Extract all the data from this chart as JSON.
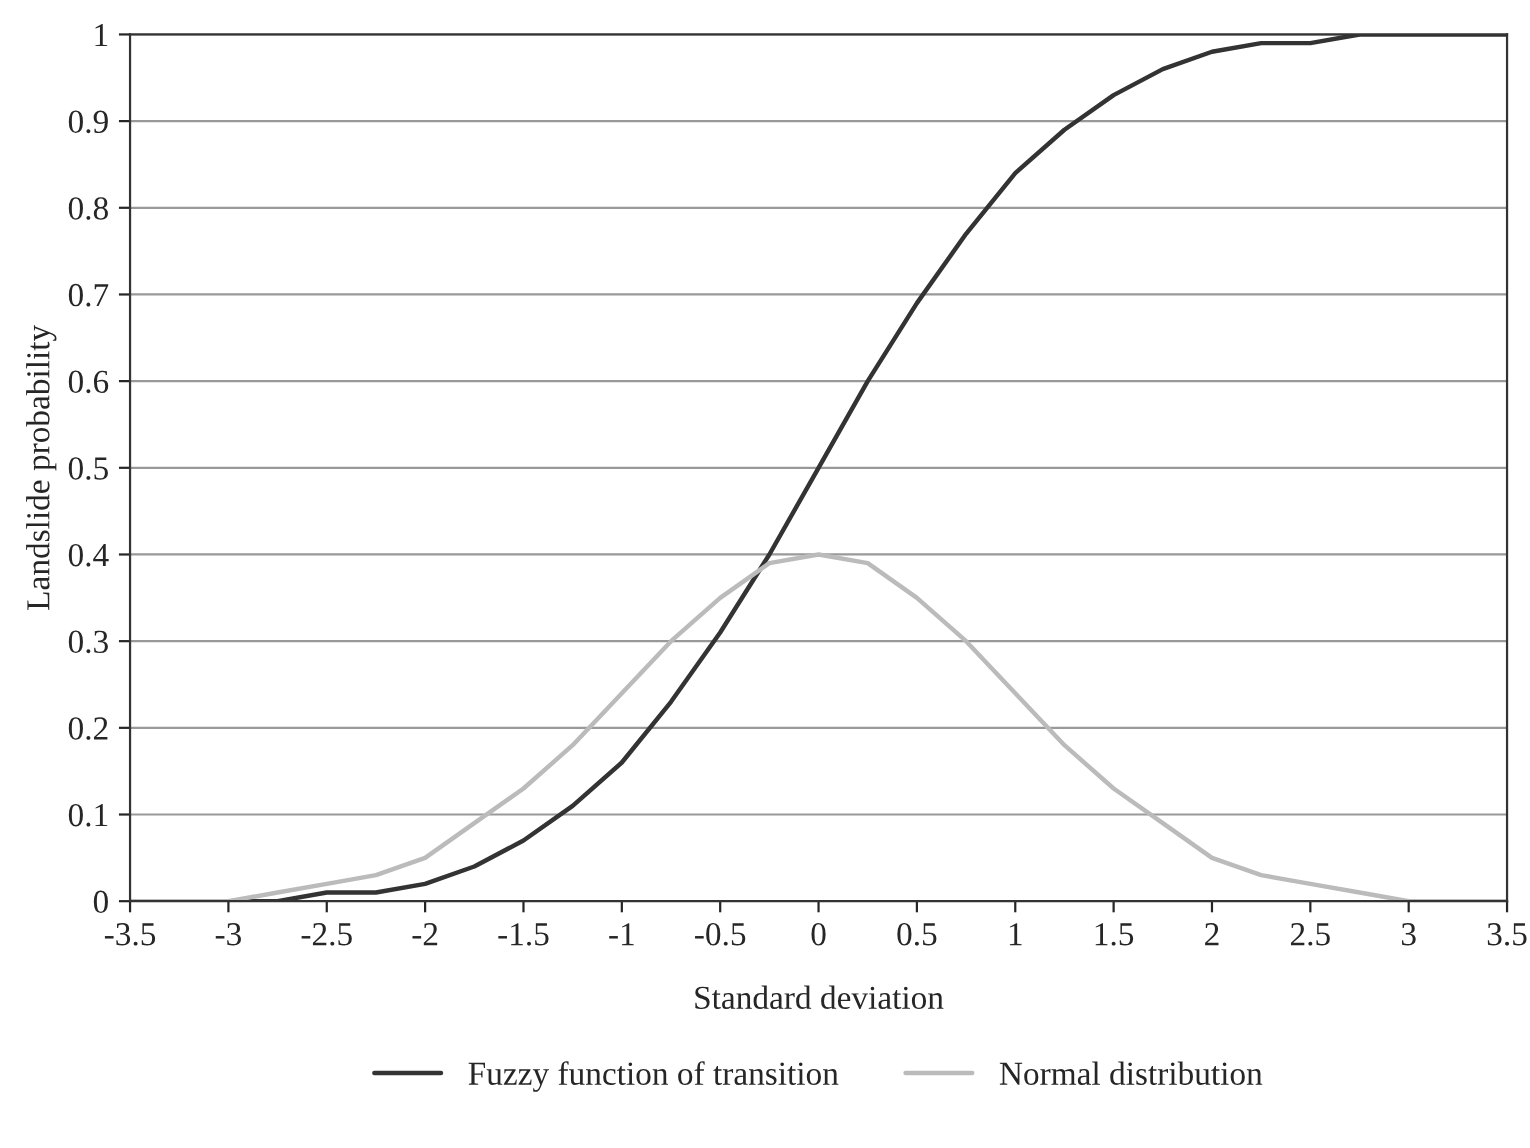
{
  "chart_data": {
    "type": "line",
    "xlabel": "Standard deviation",
    "ylabel": "Landslide probability",
    "x": [
      -3.5,
      -3.25,
      -3,
      -2.75,
      -2.5,
      -2.25,
      -2,
      -1.75,
      -1.5,
      -1.25,
      -1,
      -0.75,
      -0.5,
      -0.25,
      0,
      0.25,
      0.5,
      0.75,
      1,
      1.25,
      1.5,
      1.75,
      2,
      2.25,
      2.5,
      2.75,
      3,
      3.25,
      3.5
    ],
    "series": [
      {
        "name": "Fuzzy function of transition",
        "color": "#333333",
        "values": [
          0,
          0,
          0,
          0,
          0.01,
          0.01,
          0.02,
          0.04,
          0.07,
          0.11,
          0.16,
          0.23,
          0.31,
          0.4,
          0.5,
          0.6,
          0.69,
          0.77,
          0.84,
          0.89,
          0.93,
          0.96,
          0.98,
          0.99,
          0.99,
          1,
          1,
          1,
          1
        ]
      },
      {
        "name": "Normal distribution",
        "color": "#bbbbbb",
        "values": [
          0,
          0,
          0,
          0.01,
          0.02,
          0.03,
          0.05,
          0.09,
          0.13,
          0.18,
          0.24,
          0.3,
          0.35,
          0.39,
          0.4,
          0.39,
          0.35,
          0.3,
          0.24,
          0.18,
          0.13,
          0.09,
          0.05,
          0.03,
          0.02,
          0.01,
          0,
          0,
          0
        ]
      }
    ],
    "xlim": [
      -3.5,
      3.5
    ],
    "ylim": [
      0,
      1
    ],
    "xticks": [
      -3.5,
      -3,
      -2.5,
      -2,
      -1.5,
      -1,
      -0.5,
      0,
      0.5,
      1,
      1.5,
      2,
      2.5,
      3,
      3.5
    ],
    "yticks": [
      0,
      0.1,
      0.2,
      0.3,
      0.4,
      0.5,
      0.6,
      0.7,
      0.8,
      0.9,
      1
    ],
    "grid": "y",
    "legend": "bottom",
    "line_style": "solid",
    "marker": "none"
  }
}
